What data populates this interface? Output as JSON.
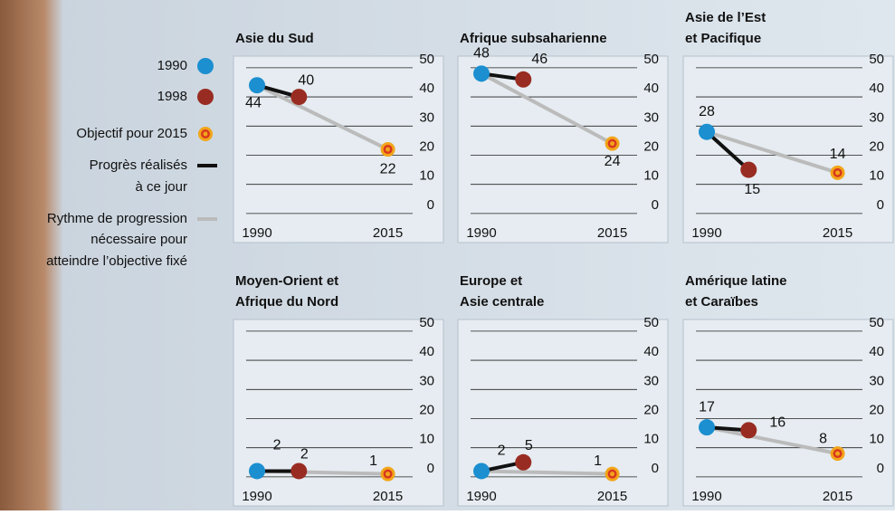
{
  "legend": {
    "items": [
      {
        "label": [
          "1990"
        ],
        "color": "#1b8fd0",
        "kind": "dot"
      },
      {
        "label": [
          "1998"
        ],
        "color": "#992c22",
        "kind": "dot"
      },
      {
        "label": [
          "Objectif pour 2015"
        ],
        "color": "#f2a51a",
        "kind": "target"
      },
      {
        "label": [
          "Progrès réalisés",
          "à ce jour"
        ],
        "color": "#111111",
        "kind": "line"
      },
      {
        "label": [
          "Rythme de progression",
          "nécessaire pour",
          "atteindre l’objective fixé"
        ],
        "color": "#bbbbbb",
        "kind": "line"
      }
    ]
  },
  "chart_data": [
    {
      "type": "line",
      "title": [
        "Asie du Sud"
      ],
      "x": [
        1990,
        1998,
        2015
      ],
      "values": [
        44,
        40,
        22
      ],
      "xlim": [
        1985.5,
        2018
      ],
      "xticks": [
        1990,
        2015
      ],
      "ylim": [
        -5,
        54
      ],
      "yticks": [
        0,
        10,
        20,
        30,
        40,
        50
      ]
    },
    {
      "type": "line",
      "title": [
        "Afrique subsaharienne"
      ],
      "x": [
        1990,
        1998,
        2015
      ],
      "values": [
        48,
        46,
        24
      ],
      "xlim": [
        1985.5,
        2018
      ],
      "xticks": [
        1990,
        2015
      ],
      "ylim": [
        -5,
        54
      ],
      "yticks": [
        0,
        10,
        20,
        30,
        40,
        50
      ]
    },
    {
      "type": "line",
      "title": [
        "Asie de l’Est",
        "et Pacifique"
      ],
      "x": [
        1990,
        1998,
        2015
      ],
      "values": [
        28,
        15,
        14
      ],
      "xlim": [
        1985.5,
        2018
      ],
      "xticks": [
        1990,
        2015
      ],
      "ylim": [
        -5,
        54
      ],
      "yticks": [
        0,
        10,
        20,
        30,
        40,
        50
      ]
    },
    {
      "type": "line",
      "title": [
        "Moyen-Orient et",
        "Afrique du Nord"
      ],
      "x": [
        1990,
        1998,
        2015
      ],
      "values": [
        2,
        2,
        1
      ],
      "xlim": [
        1985.5,
        2018
      ],
      "xticks": [
        1990,
        2015
      ],
      "ylim": [
        -5,
        54
      ],
      "yticks": [
        0,
        10,
        20,
        30,
        40,
        50
      ]
    },
    {
      "type": "line",
      "title": [
        "Europe et",
        "Asie centrale"
      ],
      "x": [
        1990,
        1998,
        2015
      ],
      "values": [
        2,
        5,
        1
      ],
      "xlim": [
        1985.5,
        2018
      ],
      "xticks": [
        1990,
        2015
      ],
      "ylim": [
        -5,
        54
      ],
      "yticks": [
        0,
        10,
        20,
        30,
        40,
        50
      ]
    },
    {
      "type": "line",
      "title": [
        "Amérique latine",
        "et Caraïbes"
      ],
      "x": [
        1990,
        1998,
        2015
      ],
      "values": [
        17,
        16,
        8
      ],
      "xlim": [
        1985.5,
        2018
      ],
      "xticks": [
        1990,
        2015
      ],
      "ylim": [
        -5,
        54
      ],
      "yticks": [
        0,
        10,
        20,
        30,
        40,
        50
      ]
    }
  ]
}
